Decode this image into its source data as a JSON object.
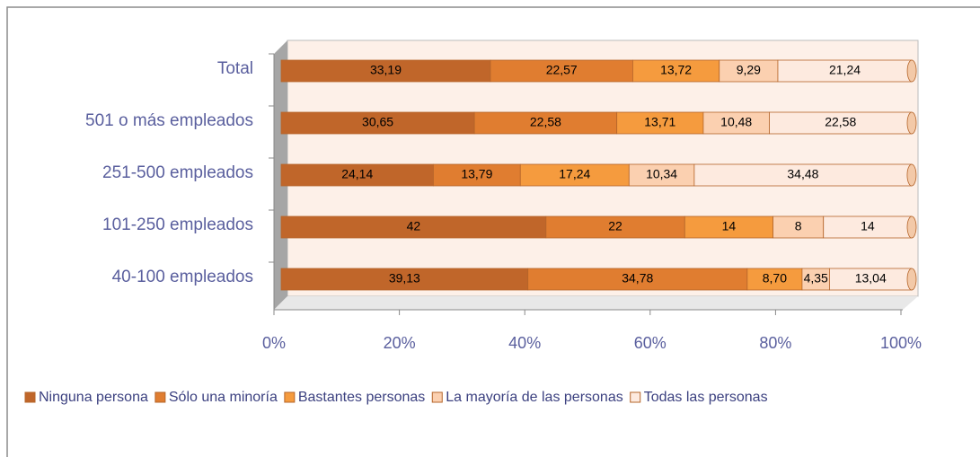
{
  "chart_data": {
    "type": "stacked_barh",
    "categories": [
      "Total",
      "501 o más empleados",
      "251-500 empleados",
      "101-250 empleados",
      "40-100 empleados"
    ],
    "series": [
      {
        "name": "Ninguna persona",
        "color": "#c0662a",
        "values": [
          33.19,
          30.65,
          24.14,
          42,
          39.13
        ],
        "value_labels": [
          "33,19",
          "30,65",
          "24,14",
          "42",
          "39,13"
        ]
      },
      {
        "name": "Sólo una minoría",
        "color": "#e07d30",
        "values": [
          22.57,
          22.58,
          13.79,
          22,
          34.78
        ],
        "value_labels": [
          "22,57",
          "22,58",
          "13,79",
          "22",
          "34,78"
        ]
      },
      {
        "name": "Bastantes personas",
        "color": "#f59b3e",
        "values": [
          13.72,
          13.71,
          17.24,
          14,
          8.7
        ],
        "value_labels": [
          "13,72",
          "13,71",
          "17,24",
          "14",
          "8,70"
        ]
      },
      {
        "name": "La mayoría de las personas",
        "color": "#fbd0b0",
        "values": [
          9.29,
          10.48,
          10.34,
          8,
          4.35
        ],
        "value_labels": [
          "9,29",
          "10,48",
          "10,34",
          "8",
          "4,35"
        ]
      },
      {
        "name": "Todas las personas",
        "color": "#fdeadf",
        "values": [
          21.24,
          22.58,
          34.48,
          14,
          13.04
        ],
        "value_labels": [
          "21,24",
          "22,58",
          "34,48",
          "14",
          "13,04"
        ]
      }
    ],
    "xlim": [
      0,
      100
    ],
    "xticks": [
      {
        "value": 0,
        "label": "0%"
      },
      {
        "value": 20,
        "label": "20%"
      },
      {
        "value": 40,
        "label": "40%"
      },
      {
        "value": 60,
        "label": "60%"
      },
      {
        "value": 80,
        "label": "80%"
      },
      {
        "value": 100,
        "label": "100%"
      }
    ],
    "legend": "bottom"
  }
}
